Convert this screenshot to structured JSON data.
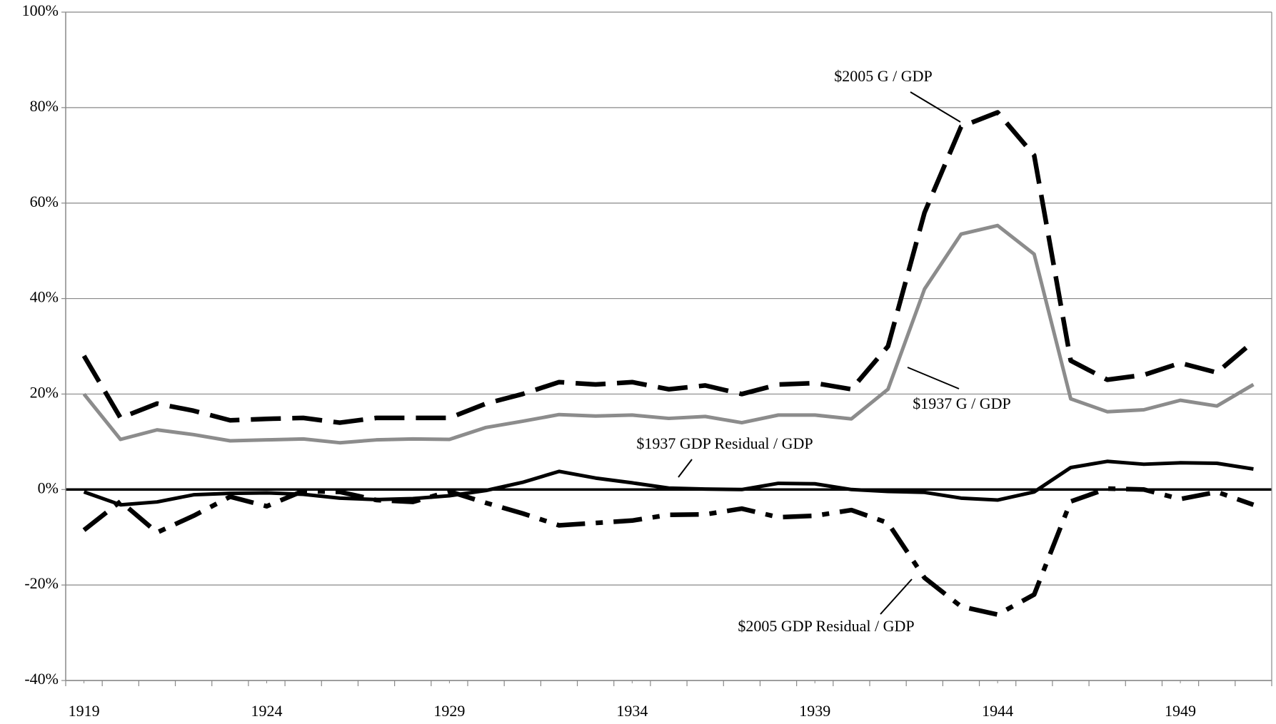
{
  "chart_data": {
    "type": "line",
    "x": [
      1919,
      1920,
      1921,
      1922,
      1923,
      1924,
      1925,
      1926,
      1927,
      1928,
      1929,
      1930,
      1931,
      1932,
      1933,
      1934,
      1935,
      1936,
      1937,
      1938,
      1939,
      1940,
      1941,
      1942,
      1943,
      1944,
      1945,
      1946,
      1947,
      1948,
      1949,
      1950,
      1951
    ],
    "xlim": [
      1918.5,
      1951.5
    ],
    "xticks": [
      1919,
      1924,
      1929,
      1934,
      1939,
      1944,
      1949
    ],
    "ylim": [
      -40,
      100
    ],
    "yticks": [
      {
        "value": -40,
        "label": "-40%"
      },
      {
        "value": -20,
        "label": "-20%"
      },
      {
        "value": 0,
        "label": "0%"
      },
      {
        "value": 20,
        "label": "20%"
      },
      {
        "value": 40,
        "label": "40%"
      },
      {
        "value": 60,
        "label": "60%"
      },
      {
        "value": 80,
        "label": "80%"
      },
      {
        "value": 100,
        "label": "100%"
      }
    ],
    "grid": true,
    "series": [
      {
        "name": "$2005 G / GDP",
        "color": "#000000",
        "line_style": "dash",
        "values": [
          28,
          15,
          18,
          16.5,
          14.5,
          14.8,
          15,
          14,
          15,
          15,
          15,
          18,
          20,
          22.5,
          22,
          22.5,
          21,
          21.8,
          20,
          22,
          22.3,
          21,
          30,
          58,
          76,
          79,
          70,
          27,
          23,
          24,
          26.5,
          24.5,
          31
        ]
      },
      {
        "name": "$1937 G / GDP",
        "color": "#8c8c8c",
        "line_style": "solid",
        "values": [
          20,
          10.5,
          12.5,
          11.5,
          10.2,
          10.4,
          10.6,
          9.8,
          10.4,
          10.6,
          10.5,
          13,
          14.3,
          15.7,
          15.4,
          15.6,
          14.9,
          15.3,
          14,
          15.6,
          15.6,
          14.8,
          21,
          42,
          53.5,
          55.3,
          49.3,
          19,
          16.3,
          16.7,
          18.7,
          17.5,
          22
        ]
      },
      {
        "name": "$1937 GDP Residual / GDP",
        "color": "#000000",
        "line_style": "solid",
        "values": [
          -0.5,
          -3.2,
          -2.6,
          -1.1,
          -0.8,
          -0.7,
          -1,
          -1.8,
          -2.1,
          -1.9,
          -1.3,
          -0.2,
          1.5,
          3.8,
          2.4,
          1.4,
          0.3,
          0.1,
          0,
          1.3,
          1.2,
          0,
          -0.4,
          -0.6,
          -1.8,
          -2.2,
          -0.5,
          4.6,
          5.9,
          5.3,
          5.6,
          5.5,
          4.3
        ]
      },
      {
        "name": "$2005 GDP Residual / GDP",
        "color": "#000000",
        "line_style": "dash-dot",
        "values": [
          -8.5,
          -2.5,
          -9,
          -5.5,
          -1.5,
          -3.5,
          -0.3,
          -0.5,
          -2.2,
          -2.6,
          -0.4,
          -2.8,
          -5,
          -7.5,
          -7,
          -6.5,
          -5.3,
          -5.2,
          -4,
          -5.8,
          -5.5,
          -4.3,
          -7,
          -18.5,
          -24.5,
          -26.2,
          -22,
          -2.5,
          0.2,
          0,
          -2,
          -0.5,
          -3.2
        ]
      }
    ]
  }
}
